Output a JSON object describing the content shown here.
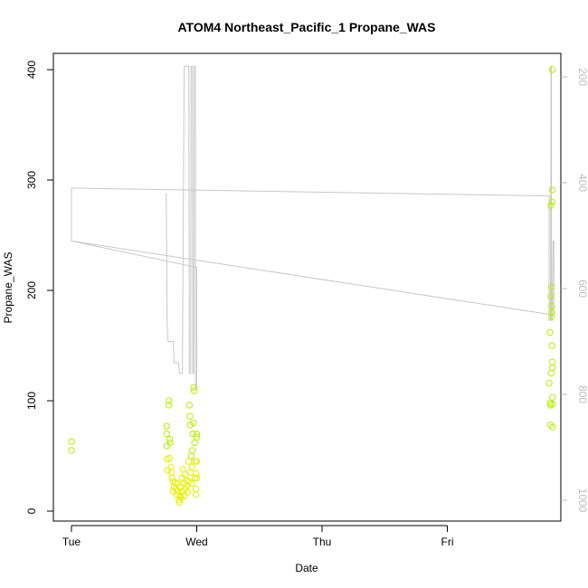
{
  "chart_data": {
    "type": "scatter",
    "title": "ATOM4 Northeast_Pacific_1 Propane_WAS",
    "xlabel": "Date",
    "ylabel": "Propane_WAS",
    "xlim": [
      "Tue 00:00",
      "Fri 21:00"
    ],
    "ylim": [
      -8,
      416
    ],
    "x_ticks": [
      "Tue",
      "Wed",
      "Thu",
      "Fri"
    ],
    "y_ticks": [
      0,
      100,
      200,
      300,
      400
    ],
    "secondary_axis": {
      "side": "right",
      "reversed": true,
      "ticks": [
        200,
        400,
        600,
        800,
        1000
      ],
      "ylim": [
        1010,
        180
      ],
      "color": "#bdbdbd"
    },
    "grid": false,
    "legend": "none",
    "colors": {
      "points": "#b5f000",
      "points_alt": "#e6f000",
      "line": "#c8c8c8",
      "axis": "#000000"
    },
    "series": [
      {
        "type": "line",
        "axis": "right",
        "points": [
          [
            "Tue 00:00",
            510
          ],
          [
            "Tue 00:00",
            410
          ],
          [
            "Fri 19:30",
            425
          ],
          [
            "Fri 19:30",
            660
          ],
          [
            "Fri 19:45",
            660
          ],
          [
            "Fri 19:52",
            180
          ],
          [
            "Fri 19:56",
            180
          ],
          [
            "Fri 19:58",
            660
          ],
          [
            "Fri 20:05",
            660
          ],
          [
            "Fri 20:15",
            510
          ],
          [
            "Fri 20:25",
            510
          ],
          [
            "Fri 20:25",
            650
          ],
          [
            "Tue 00:00",
            510
          ],
          [
            "Wed 00:00",
            560
          ],
          [
            "Wed 00:00",
            790
          ],
          [
            "Tue 23:45",
            790
          ],
          [
            "Tue 23:45",
            180
          ],
          [
            "Tue 23:30",
            180
          ],
          [
            "Tue 23:25",
            760
          ],
          [
            "Tue 23:15",
            760
          ],
          [
            "Tue 23:10",
            180
          ],
          [
            "Tue 22:55",
            180
          ],
          [
            "Tue 22:50",
            760
          ],
          [
            "Tue 22:35",
            760
          ],
          [
            "Tue 22:30",
            180
          ],
          [
            "Tue 21:35",
            180
          ],
          [
            "Tue 21:15",
            760
          ],
          [
            "Tue 20:40",
            760
          ],
          [
            "Tue 20:30",
            740
          ],
          [
            "Tue 19:40",
            740
          ],
          [
            "Tue 19:30",
            700
          ],
          [
            "Tue 18:30",
            700
          ],
          [
            "Tue 18:20",
            670
          ],
          [
            "Tue 18:10",
            420
          ]
        ]
      },
      {
        "type": "scatter",
        "axis": "left",
        "points": [
          [
            "Tue 00:00",
            63
          ],
          [
            "Tue 00:00",
            55
          ],
          [
            "Tue 18:15",
            77
          ],
          [
            "Tue 18:15",
            70
          ],
          [
            "Tue 18:15",
            59
          ],
          [
            "Tue 18:20",
            47
          ],
          [
            "Tue 18:25",
            37
          ],
          [
            "Tue 18:40",
            100
          ],
          [
            "Tue 18:40",
            96
          ],
          [
            "Tue 18:45",
            48
          ],
          [
            "Tue 18:50",
            65
          ],
          [
            "Tue 18:55",
            62
          ],
          [
            "Tue 19:05",
            40
          ],
          [
            "Tue 19:10",
            35
          ],
          [
            "Tue 19:15",
            30
          ],
          [
            "Tue 19:25",
            27
          ],
          [
            "Tue 19:30",
            18
          ],
          [
            "Tue 19:40",
            22
          ],
          [
            "Tue 19:50",
            26
          ],
          [
            "Tue 20:00",
            20
          ],
          [
            "Tue 20:10",
            15
          ],
          [
            "Tue 20:15",
            25
          ],
          [
            "Tue 20:25",
            18
          ],
          [
            "Tue 20:35",
            10
          ],
          [
            "Tue 20:40",
            8
          ],
          [
            "Tue 20:50",
            14
          ],
          [
            "Tue 20:55",
            22
          ],
          [
            "Tue 21:00",
            12
          ],
          [
            "Tue 21:10",
            30
          ],
          [
            "Tue 21:15",
            18
          ],
          [
            "Tue 21:20",
            38
          ],
          [
            "Tue 21:30",
            25
          ],
          [
            "Tue 21:35",
            14
          ],
          [
            "Tue 21:45",
            33
          ],
          [
            "Tue 21:50",
            20
          ],
          [
            "Tue 22:00",
            28
          ],
          [
            "Tue 22:10",
            23
          ],
          [
            "Tue 22:15",
            17
          ],
          [
            "Tue 22:25",
            45
          ],
          [
            "Tue 22:30",
            27
          ],
          [
            "Tue 22:35",
            96
          ],
          [
            "Tue 22:40",
            86
          ],
          [
            "Tue 22:45",
            78
          ],
          [
            "Tue 22:50",
            35
          ],
          [
            "Tue 22:55",
            50
          ],
          [
            "Tue 23:00",
            25
          ],
          [
            "Tue 23:05",
            40
          ],
          [
            "Tue 23:10",
            55
          ],
          [
            "Tue 23:15",
            70
          ],
          [
            "Tue 23:20",
            80
          ],
          [
            "Tue 23:25",
            112
          ],
          [
            "Tue 23:30",
            109
          ],
          [
            "Tue 23:35",
            62
          ],
          [
            "Tue 23:40",
            30
          ],
          [
            "Tue 23:45",
            45
          ],
          [
            "Tue 23:50",
            20
          ],
          [
            "Tue 23:50",
            15
          ],
          [
            "Tue 23:55",
            34
          ],
          [
            "Wed 00:00",
            70
          ],
          [
            "Wed 00:00",
            67
          ],
          [
            "Wed 00:00",
            45
          ],
          [
            "Wed 00:00",
            30
          ],
          [
            "Fri 19:30",
            116
          ],
          [
            "Fri 19:40",
            162
          ],
          [
            "Fri 19:42",
            98
          ],
          [
            "Fri 19:44",
            78
          ],
          [
            "Fri 19:46",
            96
          ],
          [
            "Fri 19:50",
            277
          ],
          [
            "Fri 19:52",
            195
          ],
          [
            "Fri 19:54",
            125
          ],
          [
            "Fri 19:56",
            203
          ],
          [
            "Fri 19:58",
            186
          ],
          [
            "Fri 19:58",
            180
          ],
          [
            "Fri 20:00",
            176
          ],
          [
            "Fri 20:02",
            150
          ],
          [
            "Fri 20:04",
            280
          ],
          [
            "Fri 20:05",
            291
          ],
          [
            "Fri 20:06",
            400
          ],
          [
            "Fri 20:07",
            135
          ],
          [
            "Fri 20:08",
            130
          ],
          [
            "Fri 20:09",
            103
          ],
          [
            "Fri 20:10",
            97
          ],
          [
            "Fri 20:10",
            76
          ]
        ]
      }
    ]
  }
}
